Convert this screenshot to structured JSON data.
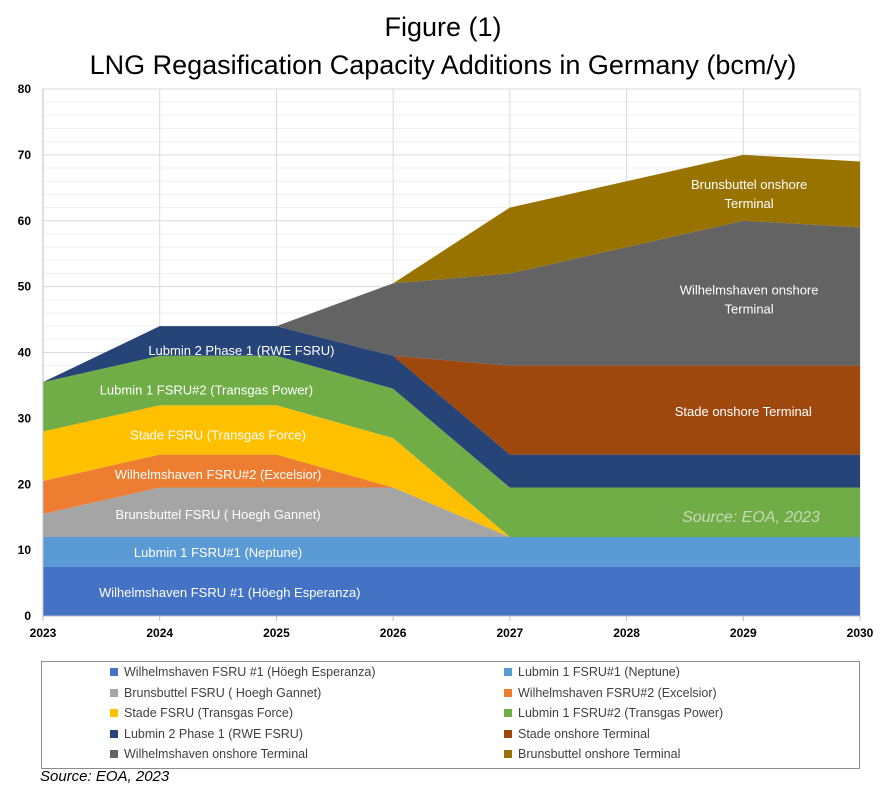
{
  "title_line1": "Figure (1)",
  "title_line2": "LNG Regasification Capacity Additions in Germany (bcm/y)",
  "source_inside": "Source: EOA, 2023",
  "source_footer": "Source: EOA, 2023",
  "chart_data": {
    "type": "area",
    "stacked": true,
    "title": "LNG Regasification Capacity Additions in Germany (bcm/y)",
    "x": [
      2023,
      2024,
      2025,
      2026,
      2027,
      2028,
      2029,
      2030
    ],
    "ylim": [
      0,
      80
    ],
    "yticks": [
      0,
      10,
      20,
      30,
      40,
      50,
      60,
      70,
      80
    ],
    "grid": true,
    "legend_position": "bottom",
    "series": [
      {
        "name": "Wilhelmshaven FSRU #1 (Höegh Esperanza)",
        "label": "Wilhelmshaven FSRU #1 (Höegh Esperanza)",
        "color": "#4472c4",
        "values": [
          7.5,
          7.5,
          7.5,
          7.5,
          7.5,
          7.5,
          7.5,
          7.5
        ]
      },
      {
        "name": "Lubmin 1 FSRU#1 (Neptune)",
        "label": "Lubmin 1 FSRU#1 (Neptune)",
        "color": "#5b9bd5",
        "values": [
          4.5,
          4.5,
          4.5,
          4.5,
          4.5,
          4.5,
          4.5,
          4.5
        ]
      },
      {
        "name": "Brunsbuttel FSRU ( Hoegh Gannet)",
        "label": "Brunsbuttel FSRU ( Hoegh Gannet)",
        "color": "#a5a5a5",
        "values": [
          3.5,
          7.5,
          7.5,
          7.5,
          0,
          0,
          0,
          0
        ]
      },
      {
        "name": "Wilhelmshaven FSRU#2 (Excelsior)",
        "label": "Wilhelmshaven FSRU#2 (Excelsior)",
        "color": "#ed7d31",
        "values": [
          5,
          5,
          5,
          0,
          0,
          0,
          0,
          0
        ]
      },
      {
        "name": "Stade FSRU (Transgas Force)",
        "label": "Stade FSRU (Transgas Force)",
        "color": "#ffc000",
        "values": [
          7.5,
          7.5,
          7.5,
          7.5,
          0,
          0,
          0,
          0
        ]
      },
      {
        "name": "Lubmin 1 FSRU#2 (Transgas Power)",
        "label": "Lubmin 1 FSRU#2 (Transgas Power)",
        "color": "#70ad47",
        "values": [
          7.5,
          7.5,
          7.5,
          7.5,
          7.5,
          7.5,
          7.5,
          7.5
        ]
      },
      {
        "name": "Lubmin 2 Phase 1 (RWE FSRU)",
        "label": "Lubmin 2 Phase 1 (RWE FSRU)",
        "color": "#264478",
        "values": [
          0,
          4.5,
          4.5,
          5,
          5,
          5,
          5,
          5
        ]
      },
      {
        "name": "Stade onshore Terminal",
        "label": "Stade onshore Terminal",
        "color": "#9e480e",
        "values": [
          0,
          0,
          0,
          0,
          13.5,
          13.5,
          13.5,
          13.5
        ]
      },
      {
        "name": "Wilhelmshaven onshore Terminal",
        "label": "Wilhelmshaven onshore Terminal",
        "color": "#636363",
        "values": [
          0,
          0,
          0,
          11,
          14,
          18,
          22,
          21
        ]
      },
      {
        "name": "Brunsbuttel onshore Terminal",
        "label": "Brunsbuttel onshore Terminal",
        "color": "#997300",
        "values": [
          0,
          0,
          0,
          0,
          10,
          10,
          10,
          10
        ]
      }
    ]
  }
}
